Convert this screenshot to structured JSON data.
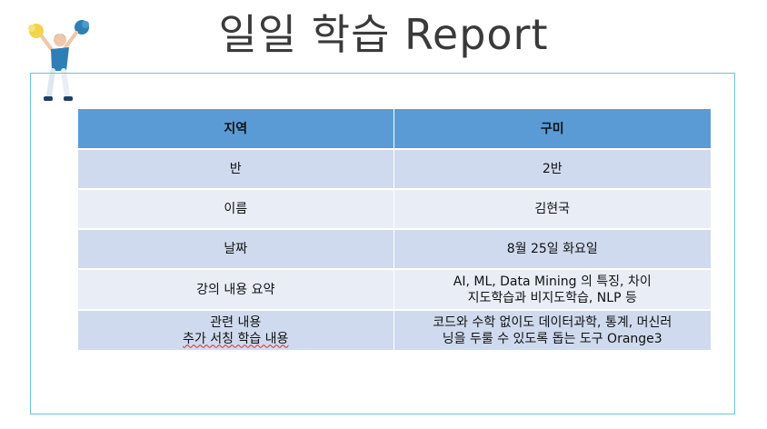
{
  "title": "일일 학습 Report",
  "icons": {
    "illustration": "cheerleader-figure-icon"
  },
  "colors": {
    "header": "#5b9bd5",
    "row_dark": "#cfdaee",
    "row_light": "#e8edf6",
    "frame": "#6cc3d5"
  },
  "table": {
    "header": {
      "label": "지역",
      "value": "구미"
    },
    "rows": [
      {
        "label": "반",
        "value": "2반"
      },
      {
        "label": "이름",
        "value": "김현국"
      },
      {
        "label": "날짜",
        "value": "8월 25일 화요일"
      },
      {
        "label": "강의 내용 요약",
        "value_lines": [
          "AI, ML, Data Mining 의 특징, 차이",
          "지도학습과 비지도학습, NLP 등"
        ]
      },
      {
        "label_lines": [
          "관련 내용",
          "추가 서칭 학습 내용"
        ],
        "value_lines": [
          "코드와 수학 없이도 데이터과학, 통계, 머신러",
          "닝을 두룰 수 있도록 돕는 도구 Orange3"
        ]
      }
    ]
  }
}
